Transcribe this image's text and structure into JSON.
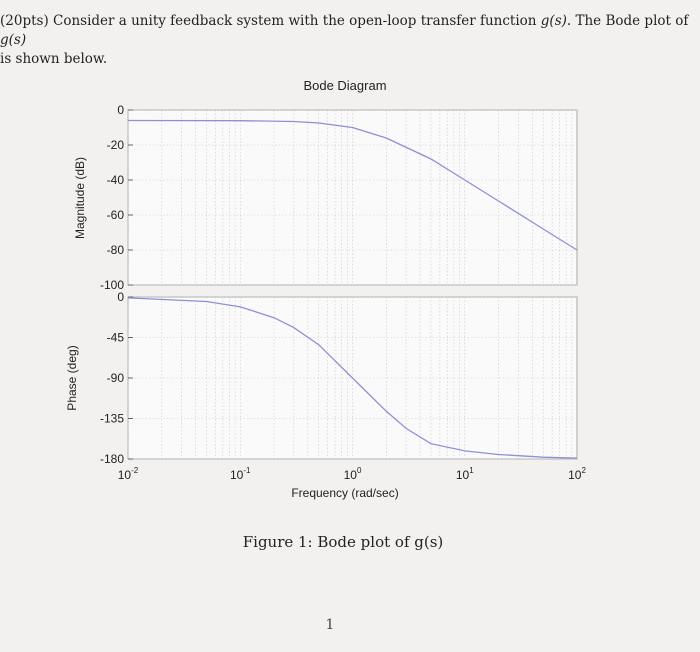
{
  "problem": {
    "lead": "(20pts) Consider a unity feedback system with the open-loop transfer function ",
    "fn": "g(s)",
    "mid": ". The Bode plot of ",
    "fn2": "g(s)",
    "line2": "is shown below."
  },
  "caption": "Figure 1: Bode plot of g(s)",
  "page_number": "1",
  "chart_data": {
    "type": "line",
    "title": "Bode Diagram",
    "xlabel": "Frequency (rad/sec)",
    "xscale": "log",
    "xlim": [
      0.01,
      100
    ],
    "xticks": [
      {
        "value": 0.01,
        "base": "10",
        "exp": "-2"
      },
      {
        "value": 0.1,
        "base": "10",
        "exp": "-1"
      },
      {
        "value": 1,
        "base": "10",
        "exp": "0"
      },
      {
        "value": 10,
        "base": "10",
        "exp": "1"
      },
      {
        "value": 100,
        "base": "10",
        "exp": "2"
      }
    ],
    "grid": true,
    "line_color": "#8f8fd6",
    "magnitude": {
      "ylabel": "Magnitude (dB)",
      "ylim": [
        -100,
        0
      ],
      "yticks": [
        0,
        -20,
        -40,
        -60,
        -80,
        -100
      ],
      "ytick_labels": [
        "0",
        "-20",
        "-40",
        "-60",
        "-80",
        "-100"
      ],
      "x": [
        0.01,
        0.1,
        0.3,
        0.5,
        1,
        2,
        5,
        10,
        20,
        50,
        100
      ],
      "y": [
        -6,
        -6.1,
        -6.6,
        -7.4,
        -10,
        -16,
        -28,
        -40,
        -52,
        -68,
        -80
      ]
    },
    "phase": {
      "ylabel": "Phase (deg)",
      "ylim": [
        -180,
        0
      ],
      "yticks": [
        0,
        -45,
        -90,
        -135,
        -180
      ],
      "ytick_labels": [
        "0",
        "-45",
        "-90",
        "-135",
        "-180"
      ],
      "x": [
        0.01,
        0.05,
        0.1,
        0.2,
        0.3,
        0.5,
        1,
        2,
        3,
        5,
        10,
        20,
        50,
        100
      ],
      "y": [
        -1,
        -5,
        -11,
        -23,
        -34,
        -53,
        -90,
        -127,
        -146,
        -163,
        -171,
        -175,
        -178,
        -179
      ]
    }
  }
}
